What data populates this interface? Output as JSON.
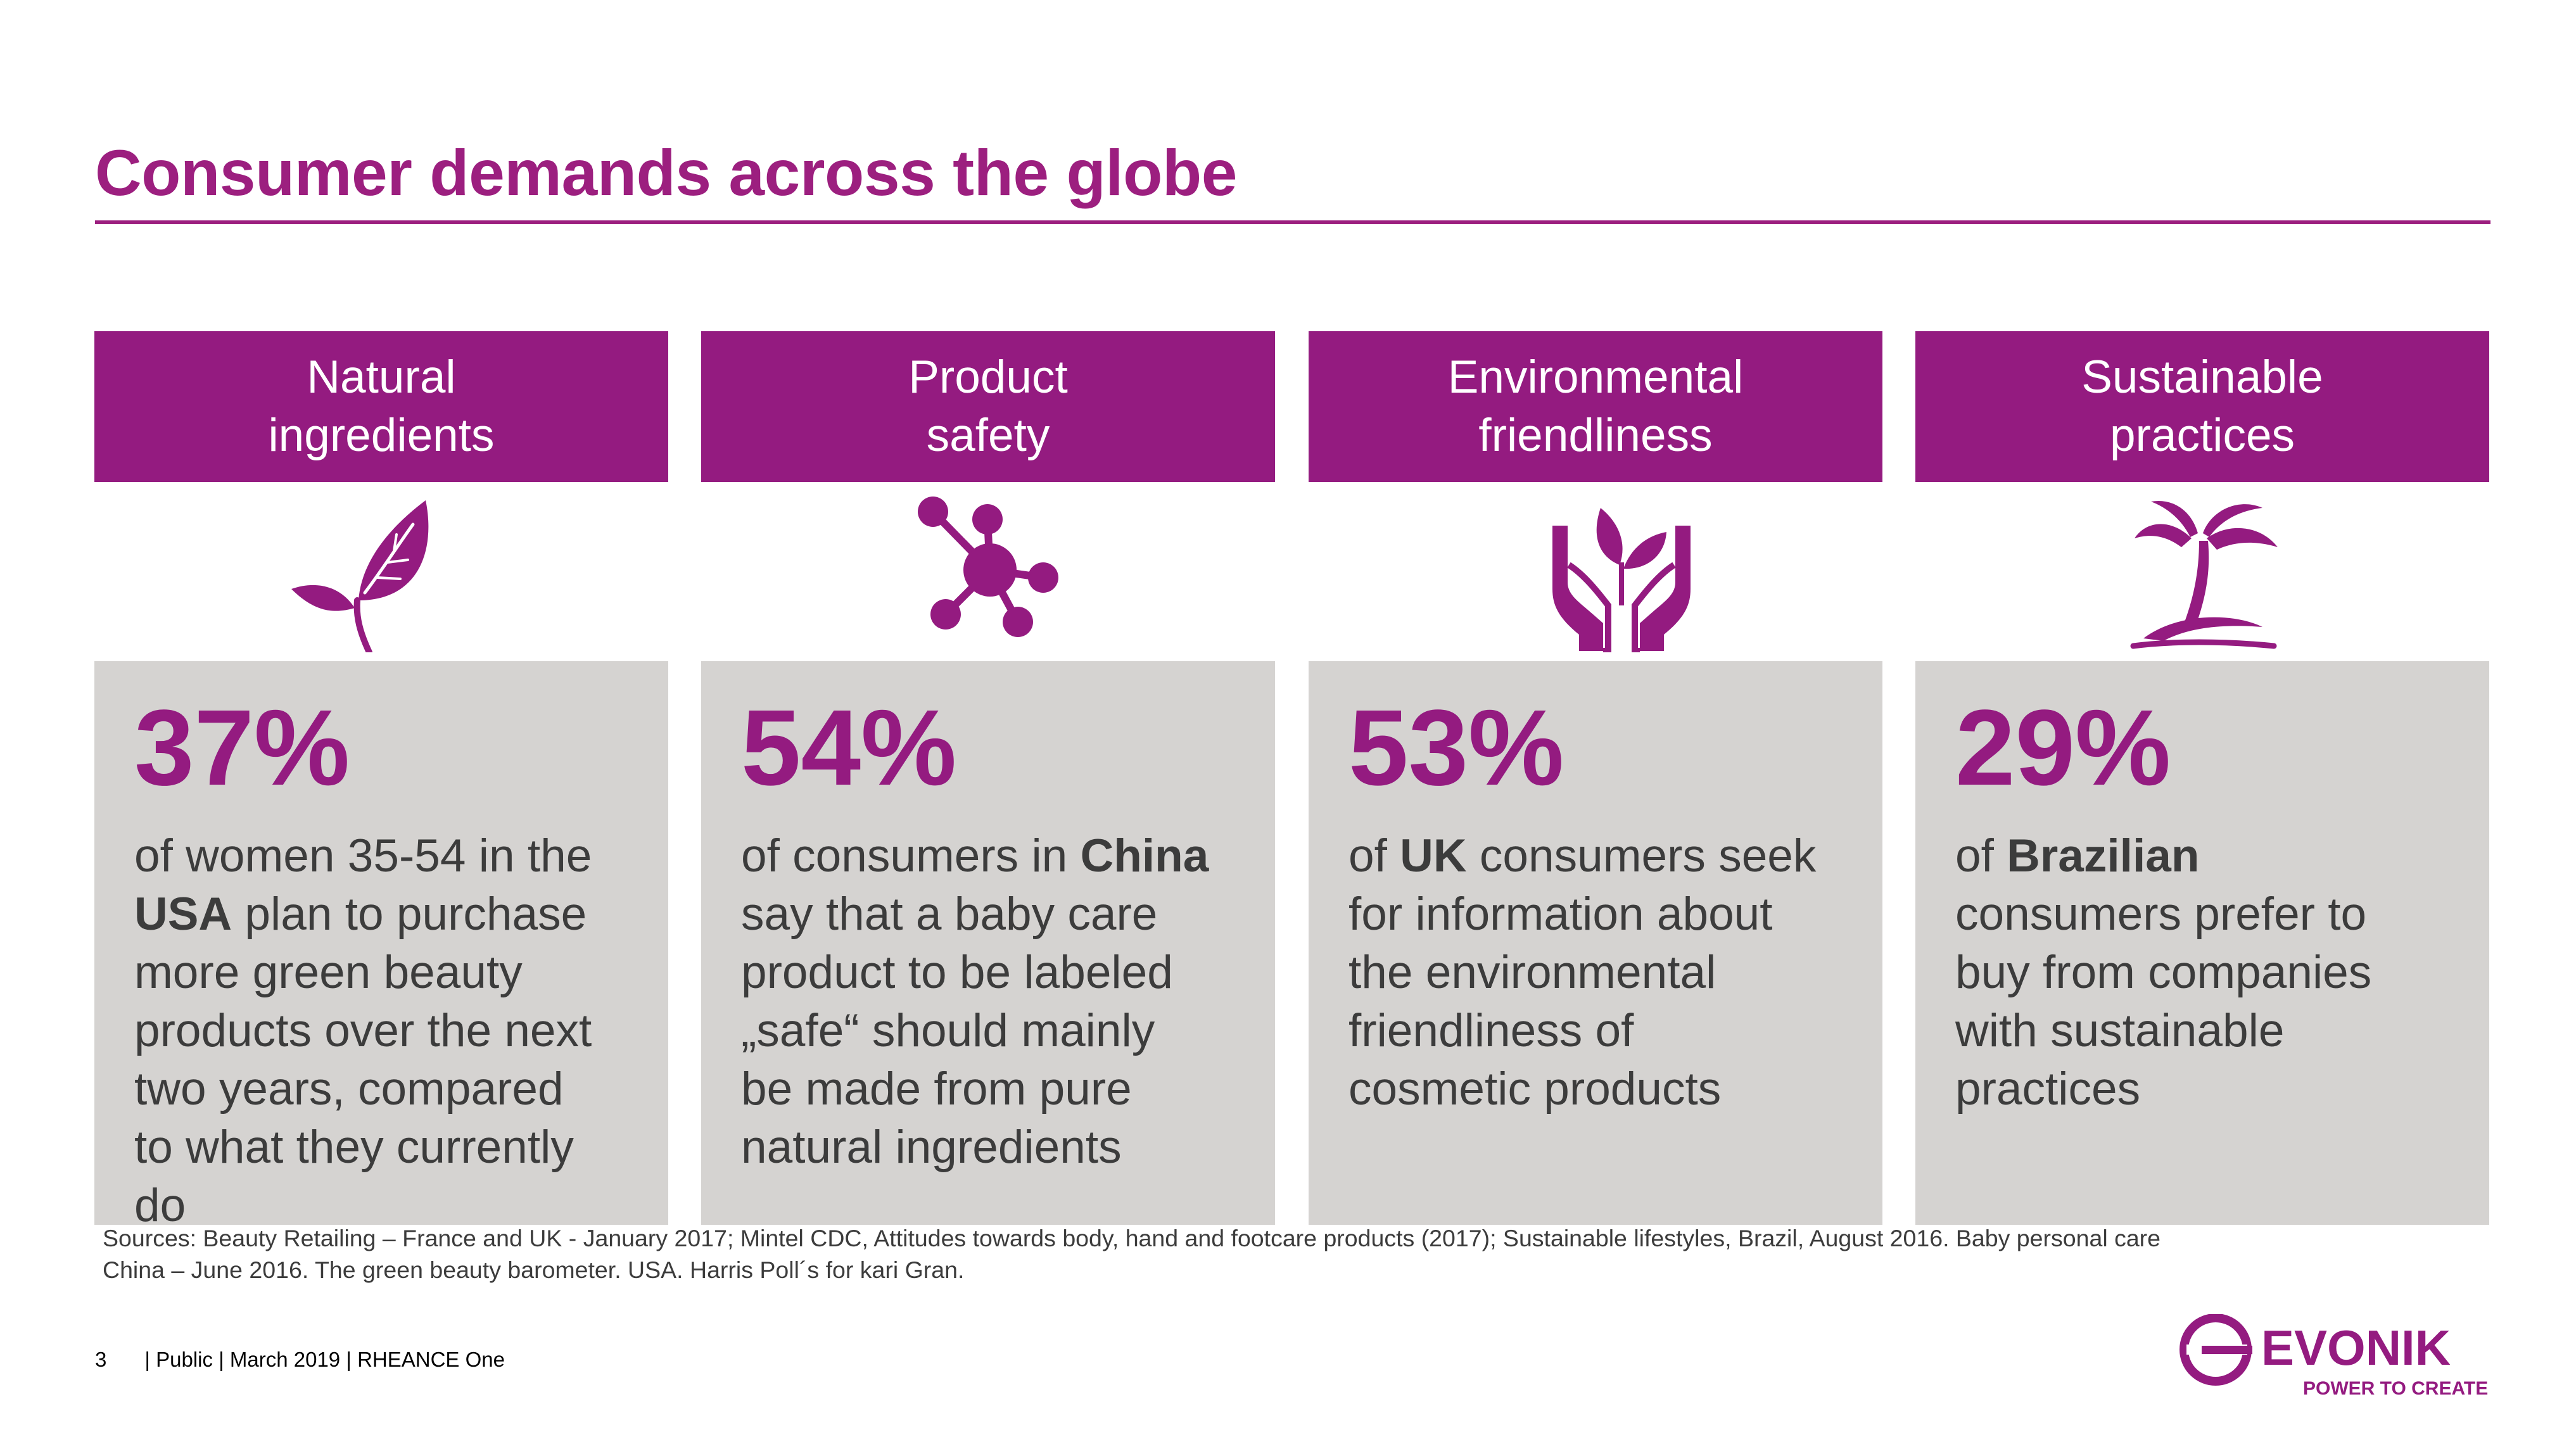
{
  "title": "Consumer demands across the globe",
  "colors": {
    "brand": "#941b80",
    "box": "#d5d3d1",
    "text": "#3c3c3c"
  },
  "columns": [
    {
      "header": [
        "Natural",
        "ingredients"
      ],
      "icon": "leaf-sprout-icon",
      "value": "37%",
      "lines": [
        [
          {
            "t": "of women 35-54 in the",
            "b": false
          }
        ],
        [
          {
            "t": "USA",
            "b": true
          },
          {
            "t": " plan to purchase",
            "b": false
          }
        ],
        [
          {
            "t": "more green beauty",
            "b": false
          }
        ],
        [
          {
            "t": "products over the next",
            "b": false
          }
        ],
        [
          {
            "t": "two years, compared",
            "b": false
          }
        ],
        [
          {
            "t": "to what they currently",
            "b": false
          }
        ],
        [
          {
            "t": "do",
            "b": false
          }
        ]
      ]
    },
    {
      "header": [
        "Product",
        "safety"
      ],
      "icon": "molecule-icon",
      "value": "54%",
      "lines": [
        [
          {
            "t": "of consumers in ",
            "b": false
          },
          {
            "t": "China",
            "b": true
          }
        ],
        [
          {
            "t": "say that a baby care",
            "b": false
          }
        ],
        [
          {
            "t": "product to be labeled",
            "b": false
          }
        ],
        [
          {
            "t": "„safe“ should mainly",
            "b": false
          }
        ],
        [
          {
            "t": "be made from pure",
            "b": false
          }
        ],
        [
          {
            "t": "natural ingredients",
            "b": false
          }
        ]
      ]
    },
    {
      "header": [
        "Environmental",
        "friendliness"
      ],
      "icon": "hands-holding-plant-icon",
      "value": "53%",
      "lines": [
        [
          {
            "t": "of ",
            "b": false
          },
          {
            "t": "UK",
            "b": true
          },
          {
            "t": " consumers seek",
            "b": false
          }
        ],
        [
          {
            "t": "for information about",
            "b": false
          }
        ],
        [
          {
            "t": "the environmental",
            "b": false
          }
        ],
        [
          {
            "t": "friendliness of",
            "b": false
          }
        ],
        [
          {
            "t": "cosmetic products",
            "b": false
          }
        ]
      ]
    },
    {
      "header": [
        "Sustainable",
        "practices"
      ],
      "icon": "palm-tree-icon",
      "value": "29%",
      "lines": [
        [
          {
            "t": "of ",
            "b": false
          },
          {
            "t": "Brazilian",
            "b": true
          }
        ],
        [
          {
            "t": "consumers prefer to",
            "b": false
          }
        ],
        [
          {
            "t": "buy from companies",
            "b": false
          }
        ],
        [
          {
            "t": "with sustainable",
            "b": false
          }
        ],
        [
          {
            "t": "practices",
            "b": false
          }
        ]
      ]
    }
  ],
  "sources": [
    "Sources: Beauty Retailing – France and UK - January 2017; Mintel CDC, Attitudes towards body, hand and footcare products (2017); Sustainable lifestyles, Brazil, August 2016. Baby personal care",
    "China – June 2016. The green beauty barometer. USA. Harris Poll´s for kari Gran."
  ],
  "footer": {
    "page": "3",
    "info": "| Public | March 2019 | RHEANCE One"
  },
  "logo": {
    "name": "EVONIK",
    "tagline": "POWER TO CREATE"
  }
}
